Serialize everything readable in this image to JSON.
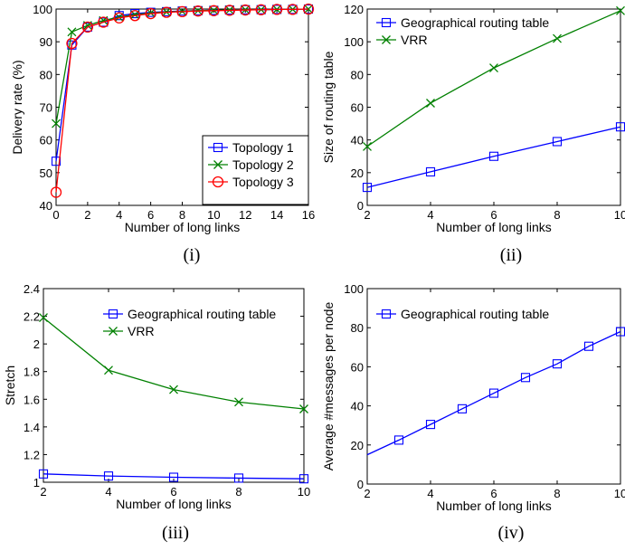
{
  "colors": {
    "blue": "#0000ff",
    "green": "#008000",
    "red": "#ff0000",
    "axis": "#000000"
  },
  "chart_data": [
    {
      "caption": "(i)",
      "type": "line",
      "xlabel": "Number of long links",
      "ylabel": "Delivery rate (%)",
      "xlim": [
        0,
        16
      ],
      "ylim": [
        40,
        100
      ],
      "xticks": [
        0,
        2,
        4,
        6,
        8,
        10,
        12,
        14,
        16
      ],
      "yticks": [
        40,
        50,
        60,
        70,
        80,
        90,
        100
      ],
      "legend_position": "bottom-right",
      "x": [
        0,
        1,
        2,
        3,
        4,
        5,
        6,
        7,
        8,
        9,
        10,
        11,
        12,
        13,
        14,
        15,
        16
      ],
      "series": [
        {
          "name": "Topology 1",
          "color": "blue",
          "marker": "square",
          "values": [
            53.5,
            89,
            94.5,
            96,
            98,
            98.6,
            99,
            99.2,
            99.4,
            99.5,
            99.6,
            99.7,
            99.8,
            99.8,
            99.9,
            99.9,
            100
          ]
        },
        {
          "name": "Topology 2",
          "color": "green",
          "marker": "x",
          "values": [
            65,
            93,
            95,
            96.5,
            97.5,
            98.3,
            98.8,
            99.1,
            99.3,
            99.5,
            99.6,
            99.7,
            99.8,
            99.8,
            99.9,
            99.9,
            100
          ]
        },
        {
          "name": "Topology 3",
          "color": "red",
          "marker": "circle",
          "values": [
            44,
            89.5,
            94.5,
            96,
            97.3,
            98,
            98.6,
            99,
            99.2,
            99.4,
            99.5,
            99.6,
            99.7,
            99.8,
            99.9,
            99.9,
            100
          ]
        }
      ]
    },
    {
      "caption": "(ii)",
      "type": "line",
      "xlabel": "Number of long links",
      "ylabel": "Size of routing table",
      "xlim": [
        2,
        10
      ],
      "ylim": [
        0,
        120
      ],
      "xticks": [
        2,
        4,
        6,
        8,
        10
      ],
      "xtick_labels": [
        "2",
        "4",
        "6",
        "8",
        "10"
      ],
      "yticks": [
        0,
        20,
        40,
        60,
        80,
        100,
        120
      ],
      "legend_position": "top-left",
      "x": [
        2,
        4,
        6,
        8,
        10
      ],
      "series": [
        {
          "name": "Geographical routing table",
          "color": "blue",
          "marker": "square",
          "values": [
            11,
            20.5,
            30,
            39,
            48
          ]
        },
        {
          "name": "VRR",
          "color": "green",
          "marker": "x",
          "values": [
            36,
            62.5,
            84,
            102,
            119
          ]
        }
      ]
    },
    {
      "caption": "(iii)",
      "type": "line",
      "xlabel": "Number of long links",
      "ylabel": "Stretch",
      "xlim": [
        2,
        10
      ],
      "ylim": [
        1,
        2.4
      ],
      "xticks": [
        2,
        4,
        6,
        8,
        10
      ],
      "xtick_labels": [
        "2",
        "4",
        "6",
        "8",
        "10"
      ],
      "yticks": [
        1,
        1.2,
        1.4,
        1.6,
        1.8,
        2,
        2.2,
        2.4
      ],
      "ytick_labels": [
        "1",
        "1.2",
        "1.4",
        "1.6",
        "1.8",
        "2",
        "2.2",
        "2.4"
      ],
      "legend_position": "top-right",
      "x": [
        2,
        4,
        6,
        8,
        10
      ],
      "series": [
        {
          "name": "Geographical routing table",
          "color": "blue",
          "marker": "square",
          "values": [
            1.06,
            1.045,
            1.036,
            1.03,
            1.025
          ]
        },
        {
          "name": "VRR",
          "color": "green",
          "marker": "x",
          "values": [
            2.19,
            1.81,
            1.67,
            1.58,
            1.53
          ]
        }
      ]
    },
    {
      "caption": "(iv)",
      "type": "line",
      "xlabel": "Number of long links",
      "ylabel": "Average #messages per node",
      "xlim": [
        2,
        10
      ],
      "ylim": [
        0,
        100
      ],
      "xticks": [
        2,
        4,
        6,
        8,
        10
      ],
      "xtick_labels": [
        "2",
        "4",
        "6",
        "8",
        "10"
      ],
      "yticks": [
        0,
        20,
        40,
        60,
        80,
        100
      ],
      "legend_position": "top-left",
      "x": [
        2,
        3,
        4,
        5,
        6,
        7,
        8,
        9,
        10
      ],
      "series": [
        {
          "name": "Geographical routing table",
          "color": "blue",
          "marker": "square",
          "values": [
            15,
            22.5,
            30.5,
            38.5,
            46.5,
            54.5,
            61.5,
            70.5,
            78
          ]
        }
      ],
      "markers_start_index": 1
    }
  ]
}
